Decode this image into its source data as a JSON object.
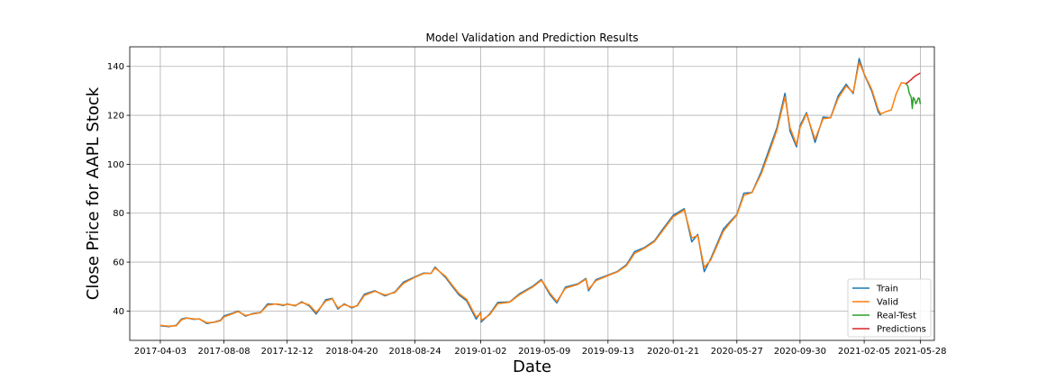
{
  "chart_data": {
    "type": "line",
    "title": "Model Validation and Prediction Results",
    "xlabel": "Date",
    "ylabel": "Close Price for AAPL Stock",
    "x_tick_labels": [
      "2017-04-03",
      "2017-08-08",
      "2017-12-12",
      "2018-04-20",
      "2018-08-24",
      "2019-01-02",
      "2019-05-09",
      "2019-09-13",
      "2020-01-21",
      "2020-05-27",
      "2020-09-30",
      "2021-02-05",
      "2021-05-28"
    ],
    "y_ticks": [
      40,
      60,
      80,
      100,
      120,
      140
    ],
    "ylim": [
      28,
      148
    ],
    "xlim": [
      "2017-02-01",
      "2021-06-25"
    ],
    "grid": true,
    "legend_position": "bottom-right",
    "series": [
      {
        "name": "Train",
        "color": "#1f77b4",
        "points": [
          [
            "2017-04-03",
            34.0
          ],
          [
            "2017-04-20",
            33.6
          ],
          [
            "2017-05-05",
            34.2
          ],
          [
            "2017-05-15",
            36.7
          ],
          [
            "2017-05-25",
            37.2
          ],
          [
            "2017-06-09",
            36.6
          ],
          [
            "2017-06-20",
            36.8
          ],
          [
            "2017-07-05",
            34.9
          ],
          [
            "2017-07-20",
            35.5
          ],
          [
            "2017-08-01",
            36.2
          ],
          [
            "2017-08-08",
            38.0
          ],
          [
            "2017-08-25",
            39.1
          ],
          [
            "2017-09-05",
            40.0
          ],
          [
            "2017-09-20",
            37.9
          ],
          [
            "2017-10-05",
            39.0
          ],
          [
            "2017-10-20",
            39.4
          ],
          [
            "2017-11-03",
            42.9
          ],
          [
            "2017-11-20",
            42.8
          ],
          [
            "2017-12-05",
            42.3
          ],
          [
            "2017-12-12",
            42.9
          ],
          [
            "2017-12-28",
            42.1
          ],
          [
            "2018-01-10",
            43.8
          ],
          [
            "2018-01-25",
            42.1
          ],
          [
            "2018-02-08",
            38.8
          ],
          [
            "2018-02-27",
            44.6
          ],
          [
            "2018-03-12",
            45.2
          ],
          [
            "2018-03-23",
            40.8
          ],
          [
            "2018-04-05",
            42.9
          ],
          [
            "2018-04-20",
            41.3
          ],
          [
            "2018-05-01",
            42.3
          ],
          [
            "2018-05-15",
            46.9
          ],
          [
            "2018-06-05",
            48.3
          ],
          [
            "2018-06-25",
            46.2
          ],
          [
            "2018-07-15",
            47.8
          ],
          [
            "2018-08-01",
            51.8
          ],
          [
            "2018-08-24",
            54.0
          ],
          [
            "2018-09-10",
            55.5
          ],
          [
            "2018-09-25",
            55.4
          ],
          [
            "2018-10-03",
            58.0
          ],
          [
            "2018-10-24",
            53.7
          ],
          [
            "2018-11-05",
            50.4
          ],
          [
            "2018-11-20",
            46.5
          ],
          [
            "2018-12-05",
            44.2
          ],
          [
            "2018-12-24",
            36.7
          ],
          [
            "2019-01-02",
            39.5
          ],
          [
            "2019-01-03",
            35.5
          ],
          [
            "2019-01-20",
            38.8
          ],
          [
            "2019-02-05",
            43.5
          ],
          [
            "2019-03-01",
            43.7
          ],
          [
            "2019-03-20",
            47.0
          ],
          [
            "2019-04-15",
            50.0
          ],
          [
            "2019-05-03",
            52.9
          ],
          [
            "2019-05-09",
            50.7
          ],
          [
            "2019-05-20",
            46.7
          ],
          [
            "2019-06-03",
            43.3
          ],
          [
            "2019-06-20",
            49.8
          ],
          [
            "2019-07-15",
            51.1
          ],
          [
            "2019-07-31",
            53.3
          ],
          [
            "2019-08-05",
            48.3
          ],
          [
            "2019-08-20",
            52.8
          ],
          [
            "2019-09-13",
            54.7
          ],
          [
            "2019-10-01",
            56.1
          ],
          [
            "2019-10-20",
            59.0
          ],
          [
            "2019-11-05",
            64.3
          ],
          [
            "2019-11-25",
            66.0
          ],
          [
            "2019-12-15",
            68.8
          ],
          [
            "2019-12-31",
            73.4
          ],
          [
            "2020-01-21",
            79.1
          ],
          [
            "2020-02-12",
            81.8
          ],
          [
            "2020-02-27",
            68.3
          ],
          [
            "2020-03-10",
            71.3
          ],
          [
            "2020-03-23",
            56.1
          ],
          [
            "2020-04-05",
            61.5
          ],
          [
            "2020-04-30",
            73.5
          ],
          [
            "2020-05-15",
            76.9
          ],
          [
            "2020-05-27",
            79.5
          ],
          [
            "2020-06-10",
            88.2
          ],
          [
            "2020-06-26",
            88.4
          ],
          [
            "2020-07-15",
            97.1
          ],
          [
            "2020-07-31",
            106.3
          ],
          [
            "2020-08-15",
            115.0
          ],
          [
            "2020-08-31",
            129.0
          ],
          [
            "2020-09-10",
            113.5
          ],
          [
            "2020-09-23",
            107.1
          ],
          [
            "2020-09-30",
            115.8
          ],
          [
            "2020-10-13",
            121.1
          ],
          [
            "2020-10-30",
            108.9
          ],
          [
            "2020-11-15",
            119.3
          ],
          [
            "2020-11-30",
            119.0
          ],
          [
            "2020-12-15",
            127.9
          ],
          [
            "2020-12-31",
            132.7
          ],
          [
            "2021-01-14",
            128.9
          ],
          [
            "2021-01-26",
            143.2
          ],
          [
            "2021-02-05",
            136.8
          ],
          [
            "2021-02-20",
            129.9
          ],
          [
            "2021-03-05",
            121.4
          ],
          [
            "2021-03-10",
            119.9
          ]
        ]
      },
      {
        "name": "Valid",
        "color": "#ff7f0e",
        "points": [
          [
            "2017-04-03",
            34.2
          ],
          [
            "2017-04-20",
            33.8
          ],
          [
            "2017-05-05",
            34.0
          ],
          [
            "2017-05-15",
            36.4
          ],
          [
            "2017-05-25",
            37.1
          ],
          [
            "2017-06-09",
            36.8
          ],
          [
            "2017-06-20",
            36.7
          ],
          [
            "2017-07-05",
            35.2
          ],
          [
            "2017-07-20",
            35.4
          ],
          [
            "2017-08-01",
            36.0
          ],
          [
            "2017-08-08",
            37.6
          ],
          [
            "2017-08-25",
            38.9
          ],
          [
            "2017-09-05",
            39.8
          ],
          [
            "2017-09-20",
            38.2
          ],
          [
            "2017-10-05",
            38.8
          ],
          [
            "2017-10-20",
            39.3
          ],
          [
            "2017-11-03",
            42.4
          ],
          [
            "2017-11-20",
            42.9
          ],
          [
            "2017-12-05",
            42.5
          ],
          [
            "2017-12-12",
            42.8
          ],
          [
            "2017-12-28",
            42.3
          ],
          [
            "2018-01-10",
            43.5
          ],
          [
            "2018-01-25",
            42.5
          ],
          [
            "2018-02-08",
            39.4
          ],
          [
            "2018-02-27",
            44.1
          ],
          [
            "2018-03-12",
            45.0
          ],
          [
            "2018-03-23",
            41.3
          ],
          [
            "2018-04-05",
            42.6
          ],
          [
            "2018-04-20",
            41.6
          ],
          [
            "2018-05-01",
            42.1
          ],
          [
            "2018-05-15",
            46.4
          ],
          [
            "2018-06-05",
            48.1
          ],
          [
            "2018-06-25",
            46.5
          ],
          [
            "2018-07-15",
            47.6
          ],
          [
            "2018-08-01",
            51.3
          ],
          [
            "2018-08-24",
            53.8
          ],
          [
            "2018-09-10",
            55.3
          ],
          [
            "2018-09-25",
            55.4
          ],
          [
            "2018-10-03",
            57.6
          ],
          [
            "2018-10-24",
            54.2
          ],
          [
            "2018-11-05",
            50.9
          ],
          [
            "2018-11-20",
            47.1
          ],
          [
            "2018-12-05",
            44.8
          ],
          [
            "2018-12-24",
            37.5
          ],
          [
            "2019-01-02",
            39.1
          ],
          [
            "2019-01-03",
            36.2
          ],
          [
            "2019-01-20",
            38.5
          ],
          [
            "2019-02-05",
            43.0
          ],
          [
            "2019-03-01",
            43.6
          ],
          [
            "2019-03-20",
            46.6
          ],
          [
            "2019-04-15",
            49.7
          ],
          [
            "2019-05-03",
            52.5
          ],
          [
            "2019-05-09",
            51.0
          ],
          [
            "2019-05-20",
            47.3
          ],
          [
            "2019-06-03",
            43.9
          ],
          [
            "2019-06-20",
            49.3
          ],
          [
            "2019-07-15",
            50.9
          ],
          [
            "2019-07-31",
            53.0
          ],
          [
            "2019-08-05",
            48.9
          ],
          [
            "2019-08-20",
            52.4
          ],
          [
            "2019-09-13",
            54.5
          ],
          [
            "2019-10-01",
            55.9
          ],
          [
            "2019-10-20",
            58.6
          ],
          [
            "2019-11-05",
            63.6
          ],
          [
            "2019-11-25",
            65.7
          ],
          [
            "2019-12-15",
            68.4
          ],
          [
            "2019-12-31",
            72.8
          ],
          [
            "2020-01-21",
            78.5
          ],
          [
            "2020-02-12",
            81.3
          ],
          [
            "2020-02-27",
            69.9
          ],
          [
            "2020-03-10",
            70.8
          ],
          [
            "2020-03-23",
            57.8
          ],
          [
            "2020-04-05",
            60.9
          ],
          [
            "2020-04-30",
            72.6
          ],
          [
            "2020-05-15",
            76.4
          ],
          [
            "2020-05-27",
            79.2
          ],
          [
            "2020-06-10",
            87.3
          ],
          [
            "2020-06-26",
            88.4
          ],
          [
            "2020-07-15",
            96.2
          ],
          [
            "2020-07-31",
            105.1
          ],
          [
            "2020-08-15",
            114.0
          ],
          [
            "2020-08-31",
            127.5
          ],
          [
            "2020-09-10",
            114.9
          ],
          [
            "2020-09-23",
            108.0
          ],
          [
            "2020-09-30",
            115.0
          ],
          [
            "2020-10-13",
            120.6
          ],
          [
            "2020-10-30",
            110.2
          ],
          [
            "2020-11-15",
            118.6
          ],
          [
            "2020-11-30",
            119.0
          ],
          [
            "2020-12-15",
            127.0
          ],
          [
            "2020-12-31",
            132.0
          ],
          [
            "2021-01-14",
            129.3
          ],
          [
            "2021-01-26",
            141.7
          ],
          [
            "2021-02-05",
            137.0
          ],
          [
            "2021-02-20",
            130.6
          ],
          [
            "2021-03-05",
            122.3
          ],
          [
            "2021-03-10",
            120.5
          ],
          [
            "2021-03-20",
            121.5
          ],
          [
            "2021-03-31",
            122.2
          ],
          [
            "2021-04-10",
            128.9
          ],
          [
            "2021-04-20",
            133.3
          ],
          [
            "2021-04-29",
            133.0
          ]
        ]
      },
      {
        "name": "Real-Test",
        "color": "#2ca02c",
        "points": [
          [
            "2021-04-29",
            133.0
          ],
          [
            "2021-05-03",
            132.0
          ],
          [
            "2021-05-06",
            129.0
          ],
          [
            "2021-05-10",
            127.2
          ],
          [
            "2021-05-12",
            122.8
          ],
          [
            "2021-05-14",
            127.3
          ],
          [
            "2021-05-17",
            126.3
          ],
          [
            "2021-05-19",
            124.7
          ],
          [
            "2021-05-21",
            125.4
          ],
          [
            "2021-05-24",
            127.1
          ],
          [
            "2021-05-26",
            126.9
          ],
          [
            "2021-05-28",
            124.6
          ]
        ]
      },
      {
        "name": "Predictions",
        "color": "#d62728",
        "points": [
          [
            "2021-04-29",
            133.0
          ],
          [
            "2021-05-03",
            133.4
          ],
          [
            "2021-05-06",
            134.0
          ],
          [
            "2021-05-10",
            134.6
          ],
          [
            "2021-05-13",
            135.3
          ],
          [
            "2021-05-17",
            135.9
          ],
          [
            "2021-05-20",
            136.4
          ],
          [
            "2021-05-24",
            136.8
          ],
          [
            "2021-05-28",
            137.3
          ]
        ]
      }
    ]
  }
}
